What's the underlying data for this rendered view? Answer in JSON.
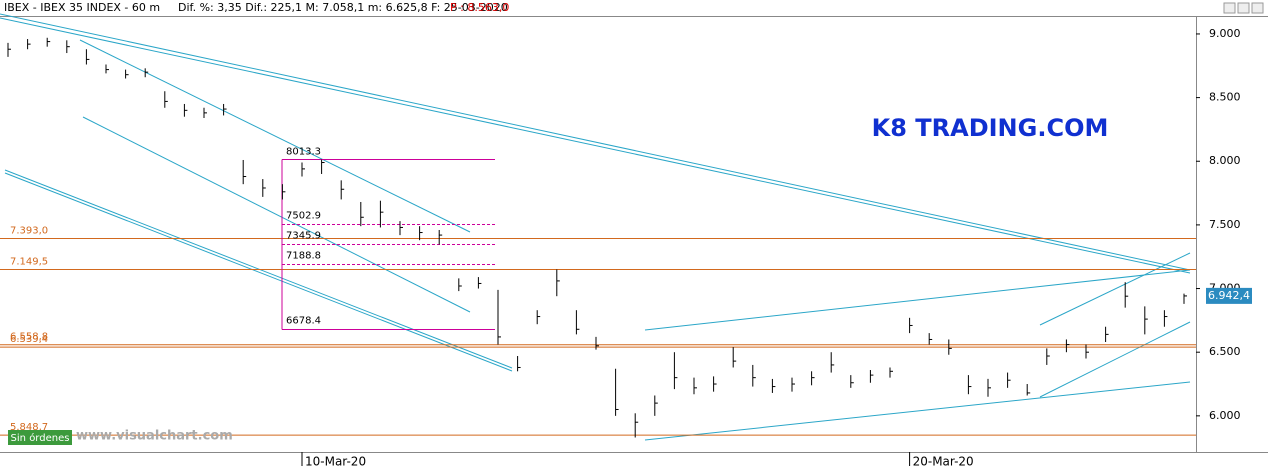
{
  "chart_data": {
    "type": "ohlc",
    "title": "IBEX - IBEX 35 INDEX - 60 m",
    "stats": "Dif. %: 3,35   Dif.: 225,1   M: 7.058,1   m: 6.625,8   F: 25-03-2020",
    "stat_p": "P : 8.563,0",
    "watermark": "K8 TRADING.COM",
    "site": "www.visualchart.com",
    "status": "Sin órdenes",
    "categories": [
      null,
      null,
      null,
      null,
      null,
      null,
      null,
      null,
      null,
      null,
      null,
      null,
      null,
      null,
      null,
      "10-Mar-20",
      null,
      null,
      null,
      null,
      null,
      null,
      null,
      null,
      null,
      null,
      null,
      null,
      null,
      null,
      null,
      null,
      null,
      null,
      null,
      null,
      null,
      null,
      null,
      null,
      null,
      null,
      null,
      null,
      null,
      null,
      "20-Mar-20",
      null,
      null,
      null,
      null,
      null,
      null,
      null,
      null,
      null,
      null,
      null,
      null,
      null,
      null
    ],
    "close": [
      8880,
      8920,
      8940,
      8900,
      8800,
      8720,
      8680,
      8700,
      8470,
      8400,
      8380,
      8410,
      7880,
      7790,
      7760,
      7940,
      7990,
      7780,
      7560,
      7600,
      7480,
      7440,
      7420,
      7020,
      7040,
      6620,
      6380,
      6780,
      7060,
      6680,
      6550,
      6050,
      5950,
      6100,
      6300,
      6220,
      6250,
      6430,
      6300,
      6230,
      6250,
      6300,
      6400,
      6260,
      6320,
      6350,
      6710,
      6600,
      6530,
      6230,
      6220,
      6280,
      6180,
      6470,
      6560,
      6500,
      6640,
      6940,
      6760,
      6780,
      6942
    ],
    "high": [
      8930,
      8960,
      8970,
      8950,
      8880,
      8760,
      8720,
      8730,
      8550,
      8450,
      8420,
      8450,
      8010,
      7860,
      7820,
      7990,
      8013,
      7850,
      7680,
      7690,
      7530,
      7490,
      7460,
      7080,
      7090,
      6990,
      6470,
      6830,
      7150,
      6830,
      6620,
      6370,
      6020,
      6160,
      6500,
      6300,
      6310,
      6540,
      6400,
      6290,
      6300,
      6350,
      6500,
      6320,
      6360,
      6380,
      6770,
      6650,
      6600,
      6320,
      6290,
      6340,
      6250,
      6530,
      6600,
      6560,
      6700,
      7050,
      6860,
      6830,
      6960
    ],
    "low": [
      8820,
      8880,
      8900,
      8850,
      8760,
      8690,
      8650,
      8660,
      8420,
      8350,
      8340,
      8360,
      7820,
      7720,
      7700,
      7880,
      7900,
      7700,
      7490,
      7480,
      7420,
      7380,
      7346,
      6980,
      7000,
      6560,
      6350,
      6720,
      6940,
      6640,
      6520,
      6000,
      5830,
      6000,
      6210,
      6170,
      6190,
      6380,
      6230,
      6180,
      6190,
      6240,
      6340,
      6220,
      6260,
      6300,
      6650,
      6560,
      6480,
      6170,
      6150,
      6220,
      6160,
      6400,
      6500,
      6450,
      6580,
      6850,
      6640,
      6700,
      6880
    ],
    "bar_color": "#000000",
    "ylim": [
      5716,
      9141
    ],
    "yticks": [
      {
        "value": 6000,
        "label": "6.000"
      },
      {
        "value": 6500,
        "label": "6.500"
      },
      {
        "value": 7000,
        "label": "7.000"
      },
      {
        "value": 7500,
        "label": "7.500"
      },
      {
        "value": 8000,
        "label": "8.000"
      },
      {
        "value": 8500,
        "label": "8.500"
      },
      {
        "value": 9000,
        "label": "9.000"
      }
    ],
    "levels": [
      {
        "value": 7393,
        "label": "7.393,0"
      },
      {
        "value": 7149.5,
        "label": "7.149,5"
      },
      {
        "value": 6558.8,
        "label": "6.558,8"
      },
      {
        "value": 6539.4,
        "label": "6.539,4"
      },
      {
        "value": 5848.7,
        "label": "5.848,7"
      }
    ],
    "level_color": "#d2691e",
    "box_levels": [
      8013.3,
      7502.9,
      7345.9,
      7188.8,
      6678.4
    ],
    "box_color": "#cc0099",
    "last_price": {
      "value": 6942.4,
      "label": "6.942,4"
    }
  }
}
